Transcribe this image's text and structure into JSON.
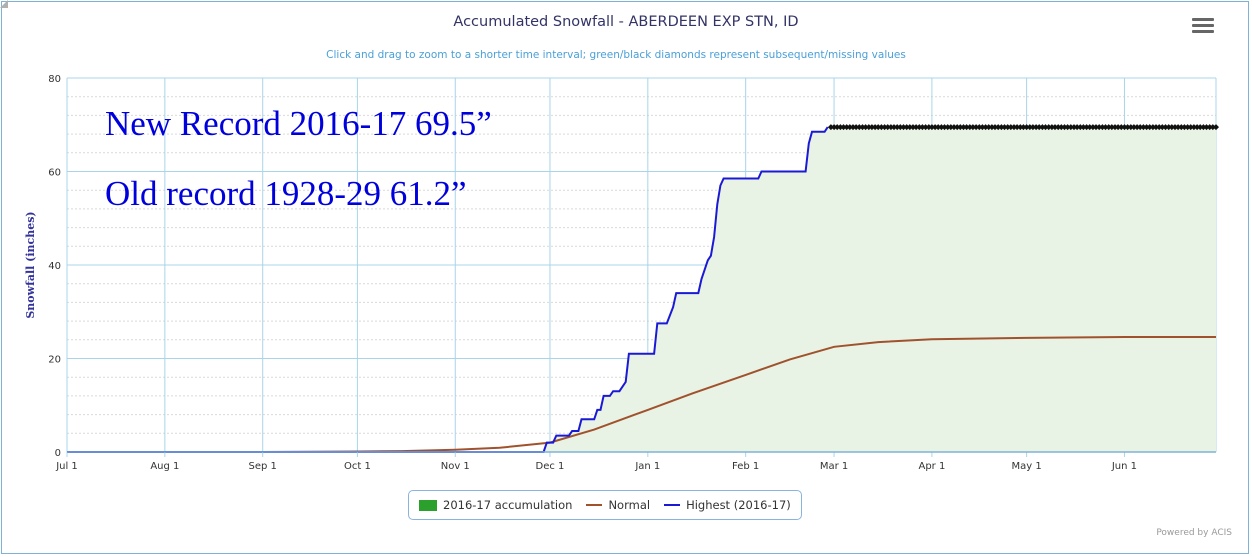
{
  "colors": {
    "accumulation_fill": "#e9f3e5",
    "accumulation_swatch": "#2ca02c",
    "normal": "#a0522d",
    "highest": "#1a1ad6",
    "grid": "#a9d4ea",
    "minor_grid": "#d9d9d9",
    "annotation": "#0000dd",
    "title": "#333366",
    "subtitle": "#4a9fd8",
    "axis_label": "#333399",
    "missing": "#111111"
  },
  "ui": {
    "menu_icon": "hamburger-menu-icon",
    "credit": "Powered by ACIS"
  },
  "legend": {
    "accumulation": "2016-17 accumulation",
    "normal": "Normal",
    "highest": "Highest (2016-17)"
  },
  "annotations": {
    "new_record": "New Record 2016-17 69.5”",
    "old_record": "Old record 1928-29 61.2”"
  },
  "chart_data": {
    "type": "line",
    "title": "Accumulated Snowfall - ABERDEEN EXP STN, ID",
    "subtitle": "Click and drag to zoom to a shorter time interval; green/black diamonds represent subsequent/missing values",
    "xlabel": "",
    "ylabel": "Snowfall (inches)",
    "ylim": [
      0,
      80
    ],
    "yticks": [
      "0",
      "20",
      "40",
      "60",
      "80"
    ],
    "xticks": [
      "Jul 1",
      "Aug 1",
      "Sep 1",
      "Oct 1",
      "Nov 1",
      "Dec 1",
      "Jan 1",
      "Feb 1",
      "Mar 1",
      "Apr 1",
      "May 1",
      "Jun 1"
    ],
    "grid": true,
    "legend_position": "bottom-center",
    "series": [
      {
        "name": "Normal",
        "points": [
          [
            "Jul 1",
            0
          ],
          [
            "Sep 1",
            0
          ],
          [
            "Oct 1",
            0.1
          ],
          [
            "Oct 15",
            0.2
          ],
          [
            "Nov 1",
            0.5
          ],
          [
            "Nov 15",
            0.9
          ],
          [
            "Dec 1",
            2.0
          ],
          [
            "Dec 15",
            4.8
          ],
          [
            "Jan 1",
            9.0
          ],
          [
            "Jan 15",
            12.5
          ],
          [
            "Feb 1",
            16.5
          ],
          [
            "Feb 15",
            19.8
          ],
          [
            "Mar 1",
            22.5
          ],
          [
            "Mar 15",
            23.5
          ],
          [
            "Apr 1",
            24.1
          ],
          [
            "May 1",
            24.4
          ],
          [
            "Jun 1",
            24.6
          ],
          [
            "Jun 30",
            24.6
          ]
        ]
      },
      {
        "name": "Highest (2016-17)",
        "points": [
          [
            "Jul 1",
            0
          ],
          [
            "Nov 29",
            0
          ],
          [
            "Nov 30",
            2
          ],
          [
            "Dec 2",
            2
          ],
          [
            "Dec 3",
            3.5
          ],
          [
            "Dec 7",
            3.5
          ],
          [
            "Dec 8",
            4.5
          ],
          [
            "Dec 10",
            4.5
          ],
          [
            "Dec 11",
            7
          ],
          [
            "Dec 15",
            7
          ],
          [
            "Dec 16",
            9
          ],
          [
            "Dec 17",
            9
          ],
          [
            "Dec 18",
            12
          ],
          [
            "Dec 20",
            12
          ],
          [
            "Dec 21",
            13
          ],
          [
            "Dec 23",
            13
          ],
          [
            "Dec 25",
            15
          ],
          [
            "Dec 26",
            21
          ],
          [
            "Jan 3",
            21
          ],
          [
            "Jan 4",
            27.5
          ],
          [
            "Jan 7",
            27.5
          ],
          [
            "Jan 9",
            31
          ],
          [
            "Jan 10",
            34
          ],
          [
            "Jan 17",
            34
          ],
          [
            "Jan 18",
            37
          ],
          [
            "Jan 20",
            41
          ],
          [
            "Jan 21",
            42
          ],
          [
            "Jan 22",
            46
          ],
          [
            "Jan 23",
            53
          ],
          [
            "Jan 24",
            57
          ],
          [
            "Jan 25",
            58.5
          ],
          [
            "Feb 5",
            58.5
          ],
          [
            "Feb 6",
            60
          ],
          [
            "Feb 20",
            60
          ],
          [
            "Feb 21",
            66
          ],
          [
            "Feb 22",
            68.5
          ],
          [
            "Feb 26",
            68.5
          ],
          [
            "Feb 27",
            69.5
          ]
        ]
      },
      {
        "name": "2016-17 accumulation",
        "points": [
          [
            "Jul 1",
            0
          ],
          [
            "Nov 29",
            0
          ],
          [
            "Nov 30",
            2
          ],
          [
            "Dec 2",
            2
          ],
          [
            "Dec 3",
            3.5
          ],
          [
            "Dec 7",
            3.5
          ],
          [
            "Dec 8",
            4.5
          ],
          [
            "Dec 10",
            4.5
          ],
          [
            "Dec 11",
            7
          ],
          [
            "Dec 15",
            7
          ],
          [
            "Dec 16",
            9
          ],
          [
            "Dec 17",
            9
          ],
          [
            "Dec 18",
            12
          ],
          [
            "Dec 20",
            12
          ],
          [
            "Dec 21",
            13
          ],
          [
            "Dec 23",
            13
          ],
          [
            "Dec 25",
            15
          ],
          [
            "Dec 26",
            21
          ],
          [
            "Jan 3",
            21
          ],
          [
            "Jan 4",
            27.5
          ],
          [
            "Jan 7",
            27.5
          ],
          [
            "Jan 9",
            31
          ],
          [
            "Jan 10",
            34
          ],
          [
            "Jan 17",
            34
          ],
          [
            "Jan 18",
            37
          ],
          [
            "Jan 20",
            41
          ],
          [
            "Jan 21",
            42
          ],
          [
            "Jan 22",
            46
          ],
          [
            "Jan 23",
            53
          ],
          [
            "Jan 24",
            57
          ],
          [
            "Jan 25",
            58.5
          ],
          [
            "Feb 5",
            58.5
          ],
          [
            "Feb 6",
            60
          ],
          [
            "Feb 20",
            60
          ],
          [
            "Feb 21",
            66
          ],
          [
            "Feb 22",
            68.5
          ],
          [
            "Feb 26",
            68.5
          ],
          [
            "Feb 27",
            69.5
          ]
        ]
      }
    ],
    "missing_values": {
      "from": "Feb 28",
      "to": "Jun 30",
      "value": 69.5
    }
  }
}
